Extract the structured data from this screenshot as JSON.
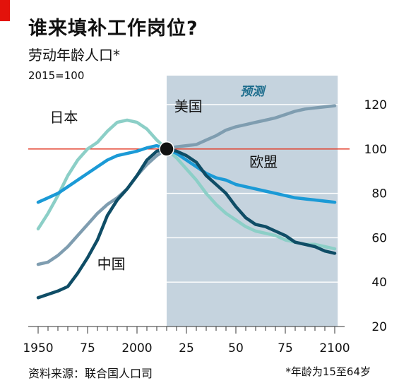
{
  "header": {
    "title": "谁来填补工作岗位?",
    "subtitle": "劳动年龄人口*",
    "index_note": "2015=100"
  },
  "footer": {
    "source": "资料来源：联合国人口司",
    "footnote": "*年龄为15至64岁"
  },
  "colors": {
    "forecast_band": "#c5d3de",
    "reference_line": "#e0311b",
    "japan": "#8ccfc7",
    "usa": "#7f9db0",
    "eu": "#1b9ad6",
    "china": "#0f4d66",
    "grid": "#ffffff",
    "marker": "#111111",
    "red_tab": "#e3120b"
  },
  "chart_data": {
    "type": "line",
    "forecast_label": "预测",
    "forecast_start": 2015,
    "reference_value": 100,
    "xlim": [
      1945,
      2105
    ],
    "ylim": [
      20,
      120
    ],
    "y_ticks": [
      20,
      40,
      60,
      80,
      100,
      120
    ],
    "x_ticks": [
      {
        "value": 1950,
        "label": "1950"
      },
      {
        "value": 1975,
        "label": "75"
      },
      {
        "value": 2000,
        "label": "2000"
      },
      {
        "value": 2025,
        "label": "25"
      },
      {
        "value": 2050,
        "label": "50"
      },
      {
        "value": 2075,
        "label": "75"
      },
      {
        "value": 2100,
        "label": "2100"
      }
    ],
    "x_minor_ticks": [
      1950,
      1955,
      1960,
      1965,
      1970,
      1975,
      1980,
      1985,
      1990,
      1995,
      2000,
      2005,
      2010,
      2015,
      2020,
      2025,
      2030,
      2035,
      2040,
      2045,
      2050,
      2055,
      2060,
      2065,
      2070,
      2075,
      2080,
      2085,
      2090,
      2095,
      2100
    ],
    "marker": {
      "x": 2015,
      "y": 100
    },
    "series": [
      {
        "name": "日本",
        "color_key": "japan",
        "x": [
          1950,
          1955,
          1960,
          1965,
          1970,
          1975,
          1980,
          1985,
          1990,
          1995,
          2000,
          2005,
          2010,
          2015,
          2020,
          2025,
          2030,
          2035,
          2040,
          2045,
          2050,
          2055,
          2060,
          2065,
          2070,
          2075,
          2080,
          2085,
          2090,
          2095,
          2100
        ],
        "y": [
          64,
          71,
          79,
          88,
          95,
          100,
          103,
          108,
          112,
          113,
          112,
          109,
          104,
          100,
          96,
          91,
          86,
          80,
          75,
          71,
          68,
          65,
          63,
          62,
          61,
          59,
          58,
          57,
          57,
          56,
          55
        ]
      },
      {
        "name": "美国",
        "color_key": "usa",
        "x": [
          1950,
          1955,
          1960,
          1965,
          1970,
          1975,
          1980,
          1985,
          1990,
          1995,
          2000,
          2005,
          2010,
          2015,
          2020,
          2025,
          2030,
          2035,
          2040,
          2045,
          2050,
          2055,
          2060,
          2065,
          2070,
          2075,
          2080,
          2085,
          2090,
          2095,
          2100
        ],
        "y": [
          48,
          49,
          52,
          56,
          61,
          66,
          71,
          75,
          78,
          82,
          88,
          93,
          97,
          100,
          101,
          101.5,
          102,
          104,
          106,
          108.5,
          110,
          111,
          112,
          113,
          114,
          115.5,
          117,
          118,
          118.5,
          119,
          119.5
        ]
      },
      {
        "name": "欧盟",
        "color_key": "eu",
        "x": [
          1950,
          1955,
          1960,
          1965,
          1970,
          1975,
          1980,
          1985,
          1990,
          1995,
          2000,
          2005,
          2010,
          2015,
          2020,
          2025,
          2030,
          2035,
          2040,
          2045,
          2050,
          2055,
          2060,
          2065,
          2070,
          2075,
          2080,
          2085,
          2090,
          2095,
          2100
        ],
        "y": [
          76,
          78,
          80,
          83,
          86,
          89,
          92,
          95,
          97,
          98,
          99,
          100.5,
          101.5,
          100,
          98,
          95,
          92,
          89,
          87,
          86,
          84,
          83,
          82,
          81,
          80,
          79,
          78,
          77.5,
          77,
          76.5,
          76
        ]
      },
      {
        "name": "中国",
        "color_key": "china",
        "x": [
          1950,
          1955,
          1960,
          1965,
          1970,
          1975,
          1980,
          1985,
          1990,
          1995,
          2000,
          2005,
          2010,
          2015,
          2020,
          2025,
          2030,
          2035,
          2040,
          2045,
          2050,
          2055,
          2060,
          2065,
          2070,
          2075,
          2080,
          2085,
          2090,
          2095,
          2100
        ],
        "y": [
          33,
          34.5,
          36,
          38,
          44,
          51,
          59,
          70,
          77,
          82,
          88,
          95,
          99,
          100,
          99,
          97,
          94,
          88,
          84,
          80,
          74,
          69,
          66,
          65,
          63,
          61,
          58,
          57,
          56,
          54,
          53
        ]
      }
    ],
    "labels": [
      {
        "series": "日本",
        "text": "日本",
        "x": 1963,
        "y": 112
      },
      {
        "series": "美国",
        "text": "美国",
        "x": 2026,
        "y": 117
      },
      {
        "series": "欧盟",
        "text": "欧盟",
        "x": 2064,
        "y": 92
      },
      {
        "series": "中国",
        "text": "中国",
        "x": 1987,
        "y": 46
      }
    ]
  }
}
